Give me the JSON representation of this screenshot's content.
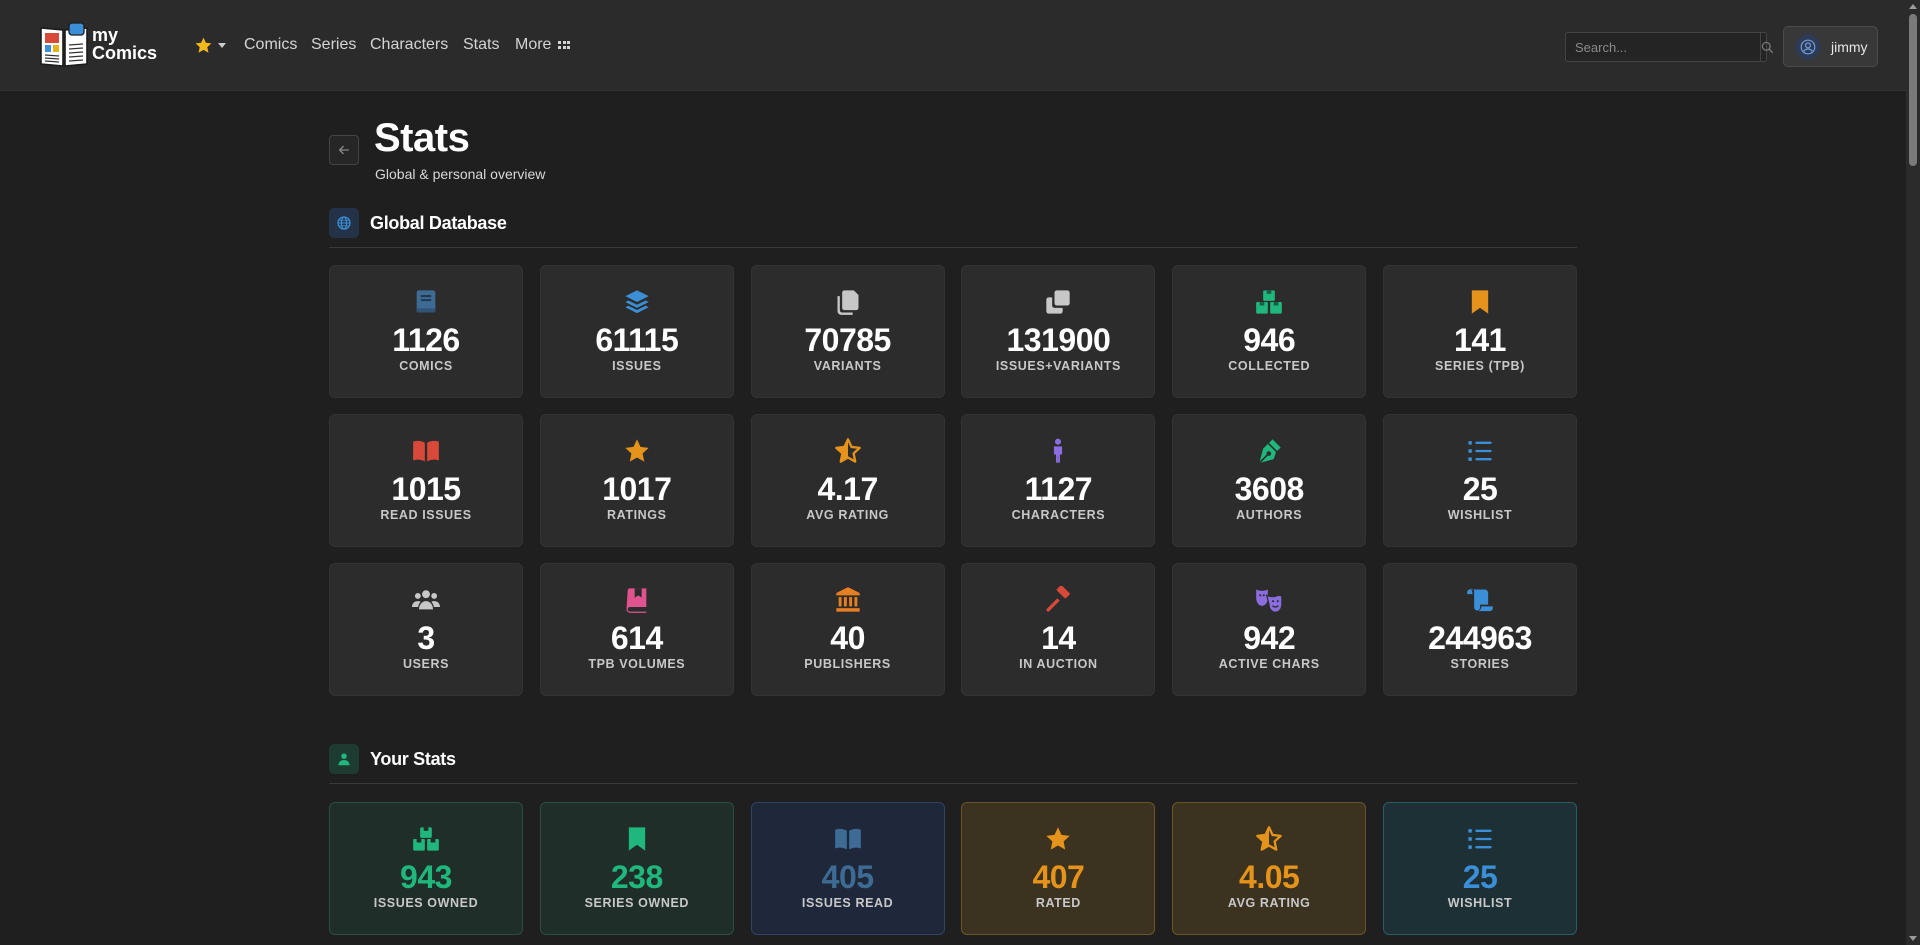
{
  "brand": {
    "line1": "my",
    "line2": "Comics"
  },
  "nav": [
    {
      "label": "Comics"
    },
    {
      "label": "Series"
    },
    {
      "label": "Characters"
    },
    {
      "label": "Stats"
    },
    {
      "label": "More"
    }
  ],
  "search": {
    "placeholder": "Search..."
  },
  "user": {
    "name": "jimmy"
  },
  "page": {
    "title": "Stats",
    "subtitle": "Global & personal overview"
  },
  "sections": {
    "global": "Global Database",
    "personal": "Your Stats"
  },
  "colors": {
    "green": "#20b77e",
    "blue": "#3b8fd6",
    "amber": "#e6931b",
    "red": "#d9493a",
    "purple": "#8b6de0",
    "pink": "#e0538f",
    "gray": "#b8b8b8",
    "steel": "#3d6b94"
  },
  "global_stats": [
    {
      "value": "1126",
      "label": "COMICS",
      "icon": "book-icon"
    },
    {
      "value": "61115",
      "label": "ISSUES",
      "icon": "layers-icon"
    },
    {
      "value": "70785",
      "label": "VARIANTS",
      "icon": "copy-icon"
    },
    {
      "value": "131900",
      "label": "ISSUES+VARIANTS",
      "icon": "clone-icon"
    },
    {
      "value": "946",
      "label": "COLLECTED",
      "icon": "boxes-icon"
    },
    {
      "value": "141",
      "label": "SERIES (TPB)",
      "icon": "bookmark-icon"
    },
    {
      "value": "1015",
      "label": "READ ISSUES",
      "icon": "open-book-icon"
    },
    {
      "value": "1017",
      "label": "RATINGS",
      "icon": "star-icon"
    },
    {
      "value": "4.17",
      "label": "AVG RATING",
      "icon": "star-half-icon"
    },
    {
      "value": "1127",
      "label": "CHARACTERS",
      "icon": "person-icon"
    },
    {
      "value": "3608",
      "label": "AUTHORS",
      "icon": "pen-nib-icon"
    },
    {
      "value": "25",
      "label": "WISHLIST",
      "icon": "list-icon"
    },
    {
      "value": "3",
      "label": "USERS",
      "icon": "users-icon"
    },
    {
      "value": "614",
      "label": "TPB VOLUMES",
      "icon": "book-bookmark-icon"
    },
    {
      "value": "40",
      "label": "PUBLISHERS",
      "icon": "building-columns-icon"
    },
    {
      "value": "14",
      "label": "IN AUCTION",
      "icon": "gavel-icon"
    },
    {
      "value": "942",
      "label": "ACTIVE CHARS",
      "icon": "masks-theater-icon"
    },
    {
      "value": "244963",
      "label": "STORIES",
      "icon": "scroll-icon"
    }
  ],
  "your_stats": [
    {
      "value": "943",
      "label": "ISSUES OWNED",
      "icon": "boxes-icon"
    },
    {
      "value": "238",
      "label": "SERIES OWNED",
      "icon": "bookmark-icon"
    },
    {
      "value": "405",
      "label": "ISSUES READ",
      "icon": "open-book-icon"
    },
    {
      "value": "407",
      "label": "RATED",
      "icon": "star-icon"
    },
    {
      "value": "4.05",
      "label": "AVG RATING",
      "icon": "star-half-icon"
    },
    {
      "value": "25",
      "label": "WISHLIST",
      "icon": "list-icon"
    }
  ]
}
